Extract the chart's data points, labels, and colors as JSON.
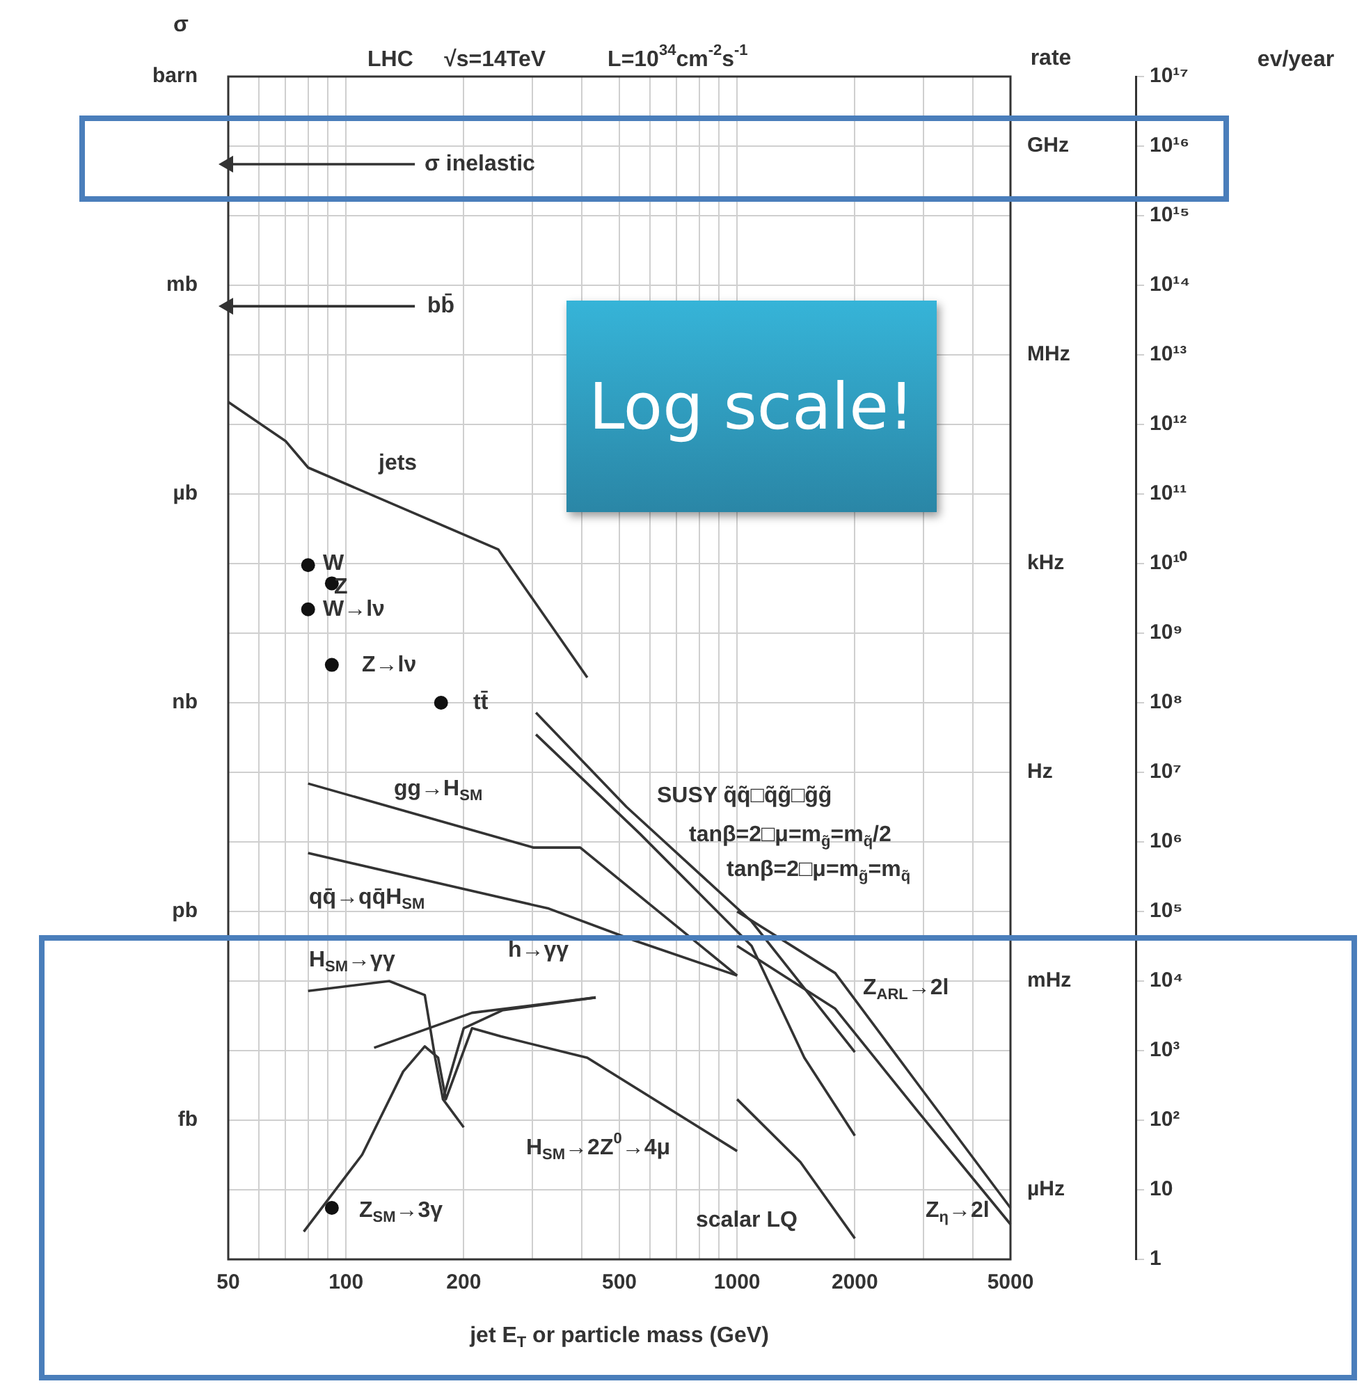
{
  "chart_data": {
    "type": "line",
    "title": "LHC     √s=14TeV          L=10$^{34}$cm$^{-2}$s$^{-1}$",
    "xlabel": "jet E$_{T}$ or particle mass (GeV)",
    "ylabel": "ev/year",
    "log": "xy",
    "grid": true,
    "legend": false,
    "marker": "none",
    "line_style": "solid",
    "xlim": [
      50,
      5000
    ],
    "xticks": [
      50,
      {
        "value": 60,
        "label": null
      },
      {
        "value": 70,
        "label": null
      },
      {
        "value": 80,
        "label": null
      },
      {
        "value": 90,
        "label": null
      },
      100,
      200,
      {
        "value": 300,
        "label": null
      },
      {
        "value": 400,
        "label": null
      },
      500,
      {
        "value": 600,
        "label": null
      },
      {
        "value": 700,
        "label": null
      },
      {
        "value": 800,
        "label": null
      },
      {
        "value": 900,
        "label": null
      },
      1000,
      2000,
      {
        "value": 3000,
        "label": null
      },
      {
        "value": 4000,
        "label": null
      },
      5000
    ],
    "ylim": [
      1,
      1e+17
    ],
    "yticks": [
      {
        "value": 1e+17,
        "label": "10¹⁷"
      },
      {
        "value": 1e+16,
        "label": "10¹⁶"
      },
      {
        "value": 1000000000000000.0,
        "label": "10¹⁵"
      },
      {
        "value": 100000000000000.0,
        "label": "10¹⁴"
      },
      {
        "value": 10000000000000.0,
        "label": "10¹³"
      },
      {
        "value": 1000000000000.0,
        "label": "10¹²"
      },
      {
        "value": 100000000000.0,
        "label": "10¹¹"
      },
      {
        "value": 10000000000.0,
        "label": "10¹⁰"
      },
      {
        "value": 1000000000.0,
        "label": "10⁹"
      },
      {
        "value": 100000000.0,
        "label": "10⁸"
      },
      {
        "value": 10000000.0,
        "label": "10⁷"
      },
      {
        "value": 1000000.0,
        "label": "10⁶"
      },
      {
        "value": 100000.0,
        "label": "10⁵"
      },
      {
        "value": 10000.0,
        "label": "10⁴"
      },
      {
        "value": 1000.0,
        "label": "10³"
      },
      {
        "value": 100.0,
        "label": "10²"
      },
      10,
      1
    ],
    "series": [
      {
        "name": "σ inelastic",
        "color": "#333333",
        "marker": "triangle",
        "x": [
          50,
          150
        ],
        "values": [
          5500000000000000.0,
          5500000000000000.0
        ]
      },
      {
        "name": "bb̄",
        "color": "#333333",
        "marker": "triangle",
        "x": [
          50,
          150
        ],
        "values": [
          50000000000000.0,
          50000000000000.0
        ]
      },
      {
        "name": "jets",
        "color": "#333333",
        "x": [
          50,
          70,
          80,
          245,
          414
        ],
        "values": [
          2100000000000.0,
          580000000000.0,
          240000000000.0,
          16000000000.0,
          230000000.0
        ]
      },
      {
        "type": "scatter",
        "name": "W",
        "color": "#111111",
        "marker": "circle",
        "x": [
          80
        ],
        "values": [
          9500000000.0
        ]
      },
      {
        "type": "scatter",
        "name": "Z",
        "color": "#111111",
        "marker": "circle",
        "x": [
          92
        ],
        "values": [
          5200000000.0
        ]
      },
      {
        "type": "scatter",
        "name": "W→lν",
        "color": "#111111",
        "marker": "circle",
        "x": [
          80
        ],
        "values": [
          2200000000.0
        ]
      },
      {
        "type": "scatter",
        "name": "Z→lν",
        "color": "#111111",
        "marker": "circle",
        "x": [
          92
        ],
        "values": [
          350000000.0
        ]
      },
      {
        "type": "scatter",
        "name": "tt̄",
        "color": "#111111",
        "marker": "circle",
        "x": [
          175
        ],
        "values": [
          100000000.0
        ]
      },
      {
        "name": "gg→H$_{SM}$",
        "color": "#333333",
        "x": [
          80,
          301,
          397,
          1000
        ],
        "values": [
          6900000.0,
          830000.0,
          830000.0,
          12000.0
        ]
      },
      {
        "name": "qq̄→qq̄H$_{SM}$",
        "color": "#333333",
        "x": [
          80,
          330,
          548,
          1000
        ],
        "values": [
          690000.0,
          110000.0,
          38000.0,
          12000.0
        ]
      },
      {
        "name": "tanβ=2□μ=m$_{g̃}$=m$_{q̃}$/2",
        "color": "#333333",
        "x": [
          306,
          521,
          1089,
          2000
        ],
        "values": [
          72000000.0,
          3200000.0,
          72000.0,
          950
        ]
      },
      {
        "color": "#333333",
        "x": [
          306,
          565,
          1089,
          1486,
          2000
        ],
        "values": [
          35000000.0,
          1300000.0,
          32000.0,
          790,
          60
        ]
      },
      {
        "name": "Z$_{ARL}$→2l",
        "color": "#333333",
        "x": [
          1000,
          1782,
          2911,
          5000
        ],
        "values": [
          100000.0,
          13000.0,
          320,
          5.5
        ]
      },
      {
        "name": "Z$_{η}$→2l",
        "color": "#333333",
        "x": [
          1000,
          1782,
          2911,
          5000
        ],
        "values": [
          32000.0,
          4000.0,
          130,
          3.2
        ]
      },
      {
        "name": "scalar LQ",
        "color": "#333333",
        "x": [
          1000,
          1452,
          2000
        ],
        "values": [
          200,
          25,
          2
        ]
      },
      {
        "name": "H$_{SM}$→2Z$^{0}$→4μ",
        "color": "#333333",
        "x": [
          78,
          110,
          140,
          159,
          172,
          180,
          210,
          249,
          414,
          1000
        ],
        "values": [
          2.5,
          32,
          500,
          1150,
          790,
          200,
          2100,
          1600,
          790,
          36
        ]
      },
      {
        "name": "H$_{SM}$→γγ",
        "color": "#333333",
        "x": [
          80,
          129,
          159,
          169,
          177,
          200
        ],
        "values": [
          7200,
          10000.0,
          6300,
          790,
          200,
          79
        ]
      },
      {
        "color": "#333333",
        "x": [
          118,
          210,
          435
        ],
        "values": [
          1100,
          3500,
          5800
        ]
      },
      {
        "color": "#333333",
        "x": [
          177,
          200,
          251,
          435
        ],
        "values": [
          200,
          2100,
          3800,
          5800
        ]
      },
      {
        "type": "scatter",
        "name": "Z$_{SM}$→3γ",
        "color": "#111111",
        "marker": "circle",
        "x": [
          92
        ],
        "values": [
          5.5
        ]
      }
    ],
    "annotations": [
      "Log scale!",
      "SUSY q̃q̃□q̃g̃□g̃g̃",
      "barn",
      "mb",
      "µb",
      "nb",
      "pb",
      "fb",
      "GHz",
      "MHz",
      "kHz",
      "Hz",
      "mHz",
      "µHz",
      "σ",
      "rate",
      "tanβ=2□μ=m$_{g̃}$=m$_{q̃}$",
      "h→γγ"
    ]
  }
}
